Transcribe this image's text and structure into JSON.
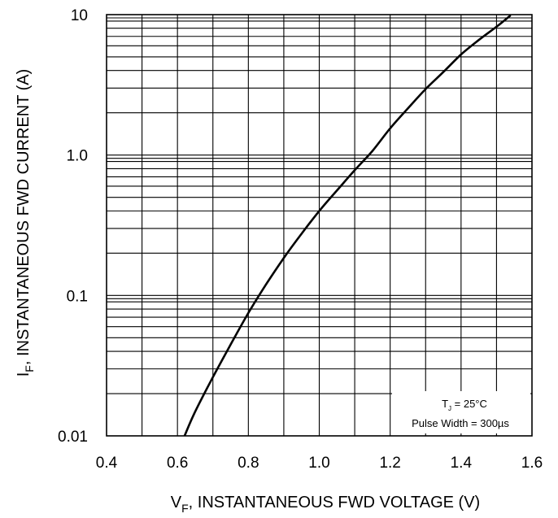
{
  "chart_data": {
    "type": "line",
    "x_scale": "linear",
    "y_scale": "log",
    "xlim": [
      0.4,
      1.6
    ],
    "ylim": [
      0.01,
      10
    ],
    "x_ticks": [
      "0.4",
      "0.6",
      "0.8",
      "1.0",
      "1.2",
      "1.4",
      "1.6"
    ],
    "y_ticks": [
      "0.01",
      "0.1",
      "1.0",
      "10"
    ],
    "xlabel": {
      "main": "V",
      "sub": "F",
      "rest": ", INSTANTANEOUS FWD VOLTAGE (V)"
    },
    "ylabel": {
      "main": "I",
      "sub": "F",
      "rest": ", INSTANTANEOUS FWD CURRENT (A)"
    },
    "grid": true,
    "annotation": {
      "line1_main": "T",
      "line1_sub": "J",
      "line1_rest": " = 25°C",
      "line2": "Pulse Width = 300µs"
    },
    "series": [
      {
        "x": [
          0.62,
          0.65,
          0.7,
          0.75,
          0.8,
          0.85,
          0.9,
          0.95,
          1.0,
          1.05,
          1.1,
          1.15,
          1.2,
          1.25,
          1.3,
          1.35,
          1.4,
          1.45,
          1.5,
          1.54
        ],
        "y": [
          0.01,
          0.0149,
          0.0262,
          0.0447,
          0.075,
          0.12,
          0.185,
          0.275,
          0.4,
          0.56,
          0.78,
          1.07,
          1.55,
          2.15,
          2.95,
          3.9,
          5.2,
          6.6,
          8.2,
          9.9
        ]
      }
    ]
  }
}
